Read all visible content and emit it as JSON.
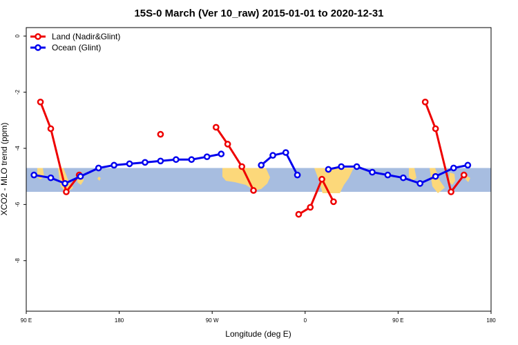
{
  "chart_data": {
    "type": "line",
    "title": "15S-0 March (Ver 10_raw)   2015-01-01 to 2020-12-31",
    "xlabel": "Longitude (deg E)",
    "ylabel": "XCO2 - MLO trend (ppm)",
    "xlim": [
      90,
      450
    ],
    "ylim": [
      -9.8,
      0.3
    ],
    "x_ticks": [
      {
        "value": 90,
        "label": "90 E"
      },
      {
        "value": 162,
        "label": "180"
      },
      {
        "value": 234,
        "label": "90 W"
      },
      {
        "value": 306,
        "label": "0"
      },
      {
        "value": 378,
        "label": "90 E"
      },
      {
        "value": 450,
        "label": "180"
      }
    ],
    "y_ticks": [
      {
        "value": 0,
        "label": "0"
      },
      {
        "value": -2,
        "label": "-2"
      },
      {
        "value": -4,
        "label": "-4"
      },
      {
        "value": -6,
        "label": "-6"
      },
      {
        "value": -8,
        "label": "-8"
      }
    ],
    "legend_position": "top-left",
    "grid": false,
    "series": [
      {
        "name": "Land (Nadir&Glint)",
        "color": "#ee0000",
        "points": [
          [
            101,
            -2.35
          ],
          [
            109,
            -3.3
          ],
          [
            121,
            -5.55
          ],
          [
            131,
            -4.95
          ],
          [
            194,
            -3.5
          ],
          [
            237,
            -3.25
          ],
          [
            246,
            -3.85
          ],
          [
            257,
            -4.65
          ],
          [
            266,
            -5.5
          ],
          [
            301,
            -6.35
          ],
          [
            310,
            -6.1
          ],
          [
            319,
            -5.1
          ],
          [
            328,
            -5.9
          ],
          [
            399,
            -2.35
          ],
          [
            407,
            -3.3
          ],
          [
            419,
            -5.55
          ],
          [
            429,
            -4.95
          ]
        ],
        "segments": [
          [
            0,
            3
          ],
          [
            4,
            4
          ],
          [
            5,
            8
          ],
          [
            9,
            12
          ],
          [
            13,
            16
          ]
        ]
      },
      {
        "name": "Ocean (Glint)",
        "color": "#0000ee",
        "points": [
          [
            96,
            -4.95
          ],
          [
            109,
            -5.05
          ],
          [
            120,
            -5.25
          ],
          [
            132,
            -5.0
          ],
          [
            146,
            -4.7
          ],
          [
            158,
            -4.6
          ],
          [
            170,
            -4.55
          ],
          [
            182,
            -4.5
          ],
          [
            194,
            -4.45
          ],
          [
            206,
            -4.4
          ],
          [
            218,
            -4.4
          ],
          [
            230,
            -4.3
          ],
          [
            241,
            -4.2
          ],
          [
            272,
            -4.6
          ],
          [
            281,
            -4.25
          ],
          [
            291,
            -4.15
          ],
          [
            300,
            -4.95
          ],
          [
            324,
            -4.75
          ],
          [
            334,
            -4.65
          ],
          [
            346,
            -4.65
          ],
          [
            358,
            -4.85
          ],
          [
            370,
            -4.95
          ],
          [
            382,
            -5.05
          ],
          [
            395,
            -5.25
          ],
          [
            407,
            -5.0
          ],
          [
            421,
            -4.7
          ],
          [
            432,
            -4.6
          ]
        ],
        "segments": [
          [
            0,
            12
          ],
          [
            13,
            16
          ],
          [
            17,
            26
          ]
        ]
      }
    ],
    "map_band": {
      "ymin": -5.55,
      "ymax": -4.7
    }
  },
  "colors": {
    "ocean": "#a7bde0",
    "land": "#fcd87a"
  }
}
